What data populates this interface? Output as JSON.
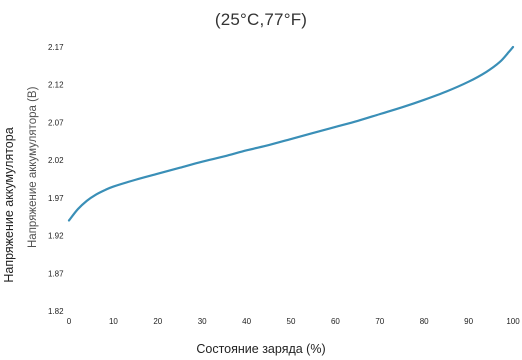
{
  "chart_data": {
    "type": "line",
    "title": "(25°C,77°F)",
    "xlabel": "Состояние заряда (%)",
    "ylabel": "Напряжение аккумулятора",
    "ylabel_overlap": "Напряжение аккумулятора (В)",
    "xlim": [
      0,
      100
    ],
    "ylim": [
      1.82,
      2.17
    ],
    "x_ticks": [
      0,
      10,
      20,
      30,
      40,
      50,
      60,
      70,
      80,
      90,
      100
    ],
    "y_ticks": [
      "2.17",
      "2.12",
      "2.07",
      "2.02",
      "1.97",
      "1.92",
      "1.87",
      "1.82"
    ],
    "grid": false,
    "line_color": "#3a8fb7",
    "series": [
      {
        "x": [
          0,
          2,
          4,
          6,
          8,
          10,
          15,
          20,
          25,
          30,
          35,
          40,
          45,
          50,
          55,
          60,
          65,
          70,
          75,
          80,
          85,
          90,
          94,
          97,
          99,
          100
        ],
        "y": [
          1.94,
          1.955,
          1.966,
          1.974,
          1.98,
          1.985,
          1.994,
          2.002,
          2.01,
          2.018,
          2.025,
          2.033,
          2.04,
          2.048,
          2.056,
          2.064,
          2.072,
          2.081,
          2.09,
          2.1,
          2.111,
          2.124,
          2.137,
          2.15,
          2.163,
          2.17
        ]
      }
    ]
  }
}
